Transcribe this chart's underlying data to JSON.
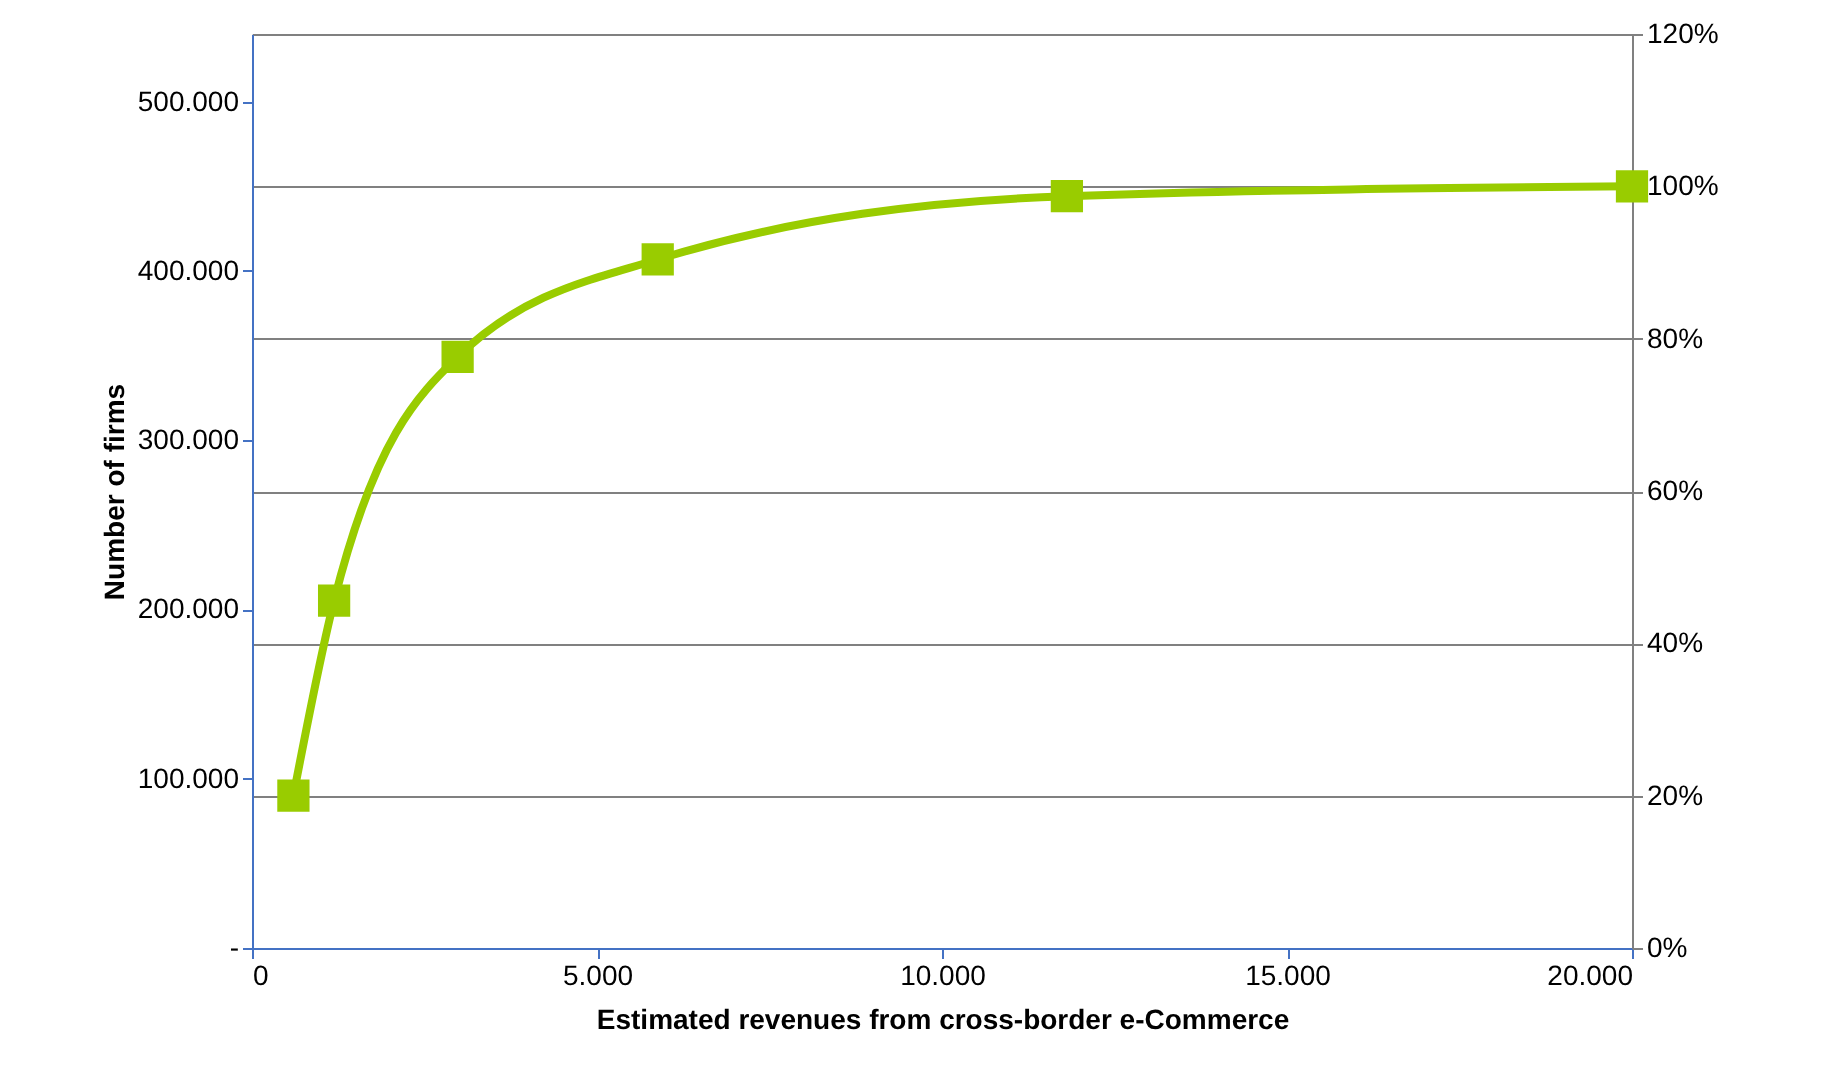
{
  "chart_data": {
    "type": "line",
    "xlabel": "Estimated revenues from cross-border e-Commerce",
    "ylabel": "Number of firms",
    "xlim": [
      0,
      20000
    ],
    "xticks": [
      {
        "value": 0,
        "label": "0"
      },
      {
        "value": 5000,
        "label": "5.000"
      },
      {
        "value": 10000,
        "label": "10.000"
      },
      {
        "value": 15000,
        "label": "15.000"
      },
      {
        "value": 20000,
        "label": "20.000"
      }
    ],
    "ylim": [
      0,
      540000
    ],
    "yticks": [
      {
        "value": 0,
        "label": "-"
      },
      {
        "value": 100000,
        "label": "100.000"
      },
      {
        "value": 200000,
        "label": "200.000"
      },
      {
        "value": 300000,
        "label": "300.000"
      },
      {
        "value": 400000,
        "label": "400.000"
      },
      {
        "value": 500000,
        "label": "500.000"
      }
    ],
    "y2lim": [
      0,
      120
    ],
    "y2ticks": [
      {
        "value": 0,
        "label": "0%"
      },
      {
        "value": 20,
        "label": "20%"
      },
      {
        "value": 40,
        "label": "40%"
      },
      {
        "value": 60,
        "label": "60%"
      },
      {
        "value": 80,
        "label": "80%"
      },
      {
        "value": 100,
        "label": "100%"
      },
      {
        "value": 120,
        "label": "120%"
      }
    ],
    "grid": "y",
    "marker": "square",
    "line_style": "solid",
    "series": [
      {
        "color": "#99cc00",
        "axis": "y2",
        "x": [
          600,
          1190,
          2980,
          5880,
          11810,
          20000
        ],
        "values": [
          20,
          45.6,
          77.6,
          90.4,
          98.7,
          100
        ]
      }
    ]
  }
}
